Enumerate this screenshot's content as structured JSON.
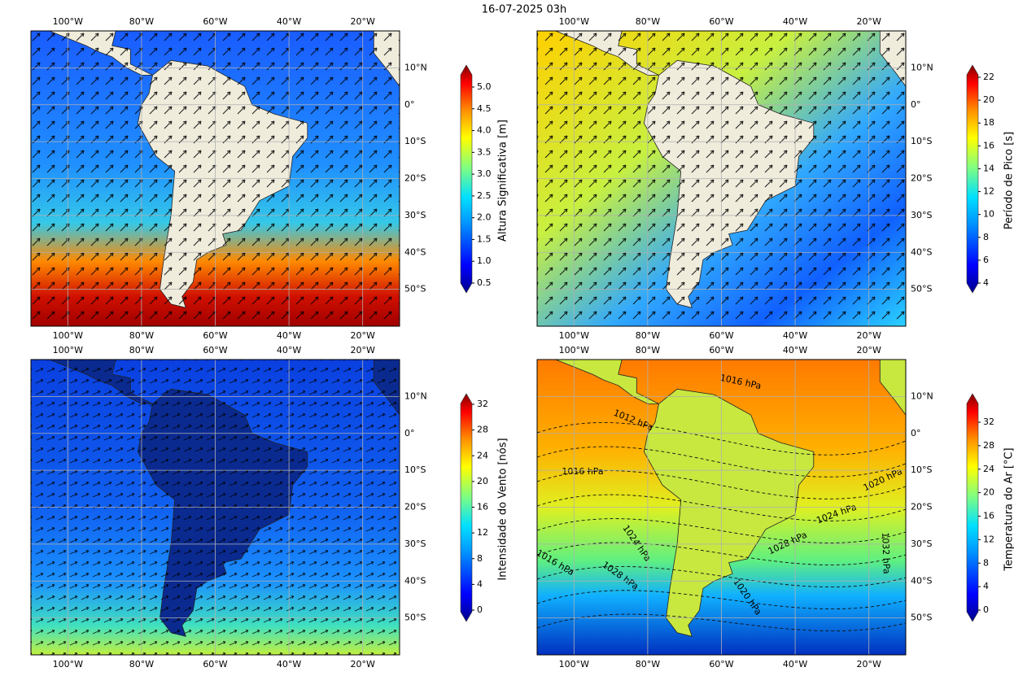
{
  "title": "16-07-2025 03h",
  "lon_ticks": [
    "100°W",
    "80°W",
    "60°W",
    "40°W",
    "20°W"
  ],
  "lat_ticks": [
    "10°N",
    "0°",
    "10°S",
    "20°S",
    "30°S",
    "40°S",
    "50°S"
  ],
  "panels": [
    {
      "colorbar": {
        "label": "Altura Significativa [m]",
        "ticks": [
          "0.5",
          "1.0",
          "1.5",
          "2.0",
          "2.5",
          "3.0",
          "3.5",
          "4.0",
          "4.5",
          "5.0"
        ]
      }
    },
    {
      "colorbar": {
        "label": "Período de Pico [s]",
        "ticks": [
          "4",
          "6",
          "8",
          "10",
          "12",
          "14",
          "16",
          "18",
          "20",
          "22"
        ]
      }
    },
    {
      "colorbar": {
        "label": "Intensidade do Vento [nós]",
        "ticks": [
          "0",
          "4",
          "8",
          "12",
          "16",
          "20",
          "24",
          "28",
          "32"
        ]
      }
    },
    {
      "colorbar": {
        "label": "Temperatura do Ar [°C]",
        "ticks": [
          "0",
          "4",
          "8",
          "12",
          "16",
          "20",
          "24",
          "28",
          "32"
        ]
      },
      "contour_labels": [
        "1016 hPa",
        "1012 hPa",
        "1016 hPa",
        "1020 hPa",
        "1024 hPa",
        "1028 hPa",
        "1024 hPa",
        "1028 hPa",
        "1016 hPa",
        "1020 hPa",
        "1032 hPa"
      ]
    }
  ]
}
